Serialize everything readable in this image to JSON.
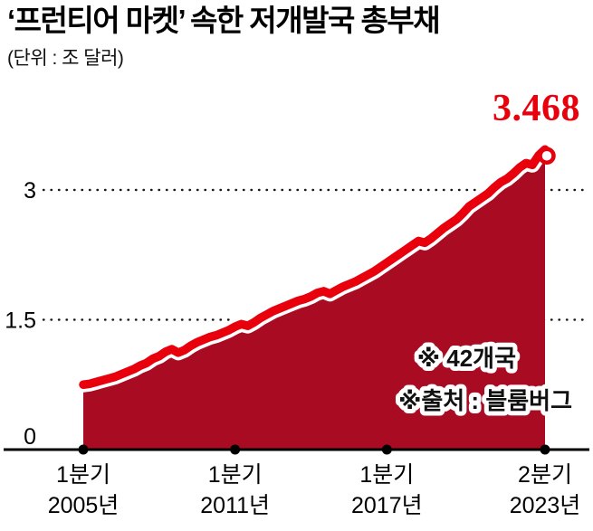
{
  "header": {
    "title": "‘프런티어 마켓’ 속한 저개발국 총부채",
    "subtitle": "(단위 : 조 달러)"
  },
  "chart_data": {
    "type": "area",
    "title": "‘프런티어 마켓’ 속한 저개발국 총부채",
    "unit_label": "(단위 : 조 달러)",
    "x_start": "2005년 1분기",
    "x_end": "2023년 2분기",
    "x_frequency": "quarterly",
    "ylim": [
      0,
      3.6
    ],
    "yticks": [
      {
        "value": 0,
        "label": "0"
      },
      {
        "value": 1.5,
        "label": "1.5"
      },
      {
        "value": 3,
        "label": "3"
      }
    ],
    "gridline_values": [
      1.5,
      3
    ],
    "xticks": [
      {
        "index": 0,
        "line1": "1분기",
        "line2": "2005년"
      },
      {
        "index": 24,
        "line1": "1분기",
        "line2": "2011년"
      },
      {
        "index": 48,
        "line1": "1분기",
        "line2": "2017년"
      },
      {
        "index": 73,
        "line1": "2분기",
        "line2": "2023년"
      }
    ],
    "series": [
      {
        "name": "저개발국 총부채(조 달러)",
        "values": [
          0.75,
          0.76,
          0.78,
          0.8,
          0.82,
          0.84,
          0.87,
          0.9,
          0.93,
          0.97,
          1.0,
          1.05,
          1.08,
          1.13,
          1.16,
          1.12,
          1.15,
          1.2,
          1.24,
          1.27,
          1.3,
          1.32,
          1.35,
          1.38,
          1.42,
          1.45,
          1.43,
          1.47,
          1.52,
          1.56,
          1.6,
          1.63,
          1.66,
          1.69,
          1.72,
          1.74,
          1.77,
          1.81,
          1.83,
          1.8,
          1.84,
          1.88,
          1.91,
          1.94,
          1.98,
          2.02,
          2.06,
          2.11,
          2.16,
          2.21,
          2.26,
          2.31,
          2.36,
          2.41,
          2.39,
          2.44,
          2.5,
          2.56,
          2.61,
          2.66,
          2.73,
          2.81,
          2.86,
          2.91,
          2.96,
          3.03,
          3.09,
          3.13,
          3.19,
          3.26,
          3.31,
          3.29,
          3.4,
          3.468
        ]
      }
    ],
    "peak_label": "3.468",
    "notes": [
      "※ 42개국",
      "※출처 : 블룸버그"
    ],
    "legend_position": "none",
    "grid": "dotted-horizontal",
    "colors": {
      "line": "#e8000d",
      "fill": "#a90b22",
      "text": "#111111",
      "axis": "#000000"
    }
  }
}
